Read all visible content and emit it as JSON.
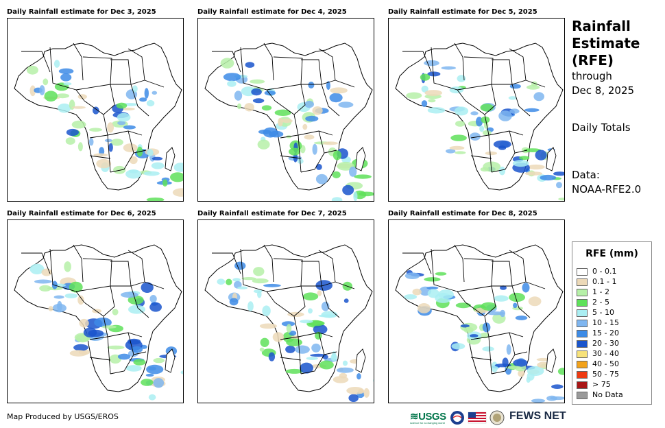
{
  "panels": [
    {
      "title": "Daily Rainfall estimate for Dec 3, 2025"
    },
    {
      "title": "Daily Rainfall estimate for Dec 4, 2025"
    },
    {
      "title": "Daily Rainfall estimate for Dec 5, 2025"
    },
    {
      "title": "Daily Rainfall estimate for Dec 6, 2025"
    },
    {
      "title": "Daily Rainfall estimate for Dec 7, 2025"
    },
    {
      "title": "Daily Rainfall estimate for Dec 8, 2025"
    }
  ],
  "sidebar": {
    "title_line1": "Rainfall",
    "title_line2": "Estimate",
    "title_line3": "(RFE)",
    "sub1": "through",
    "sub2": "Dec 8, 2025",
    "totals": "Daily Totals",
    "data_label": "Data:",
    "data_source": "NOAA-RFE2.0"
  },
  "legend": {
    "title": "RFE (mm)",
    "items": [
      {
        "label": "0 - 0.1",
        "color": "#ffffff"
      },
      {
        "label": "0.1 - 1",
        "color": "#ecd9b8"
      },
      {
        "label": "1 - 2",
        "color": "#b6f0a8"
      },
      {
        "label": "2 - 5",
        "color": "#5fe15a"
      },
      {
        "label": "5 - 10",
        "color": "#aaeef2"
      },
      {
        "label": "10 - 15",
        "color": "#7fb6f0"
      },
      {
        "label": "15 - 20",
        "color": "#3d8be6"
      },
      {
        "label": "20 - 30",
        "color": "#1a55cc"
      },
      {
        "label": "30 - 40",
        "color": "#f7e27a"
      },
      {
        "label": "40 - 50",
        "color": "#f2a21a"
      },
      {
        "label": "50 - 75",
        "color": "#ee3a12"
      },
      {
        "label": "> 75",
        "color": "#a81616"
      },
      {
        "label": "No Data",
        "color": "#999999"
      }
    ]
  },
  "footer": {
    "credit": "Map Produced by USGS/EROS",
    "usgs_logo": "≋USGS",
    "usgs_tagline": "science for a changing world",
    "fews_net": "FEWS NET"
  }
}
